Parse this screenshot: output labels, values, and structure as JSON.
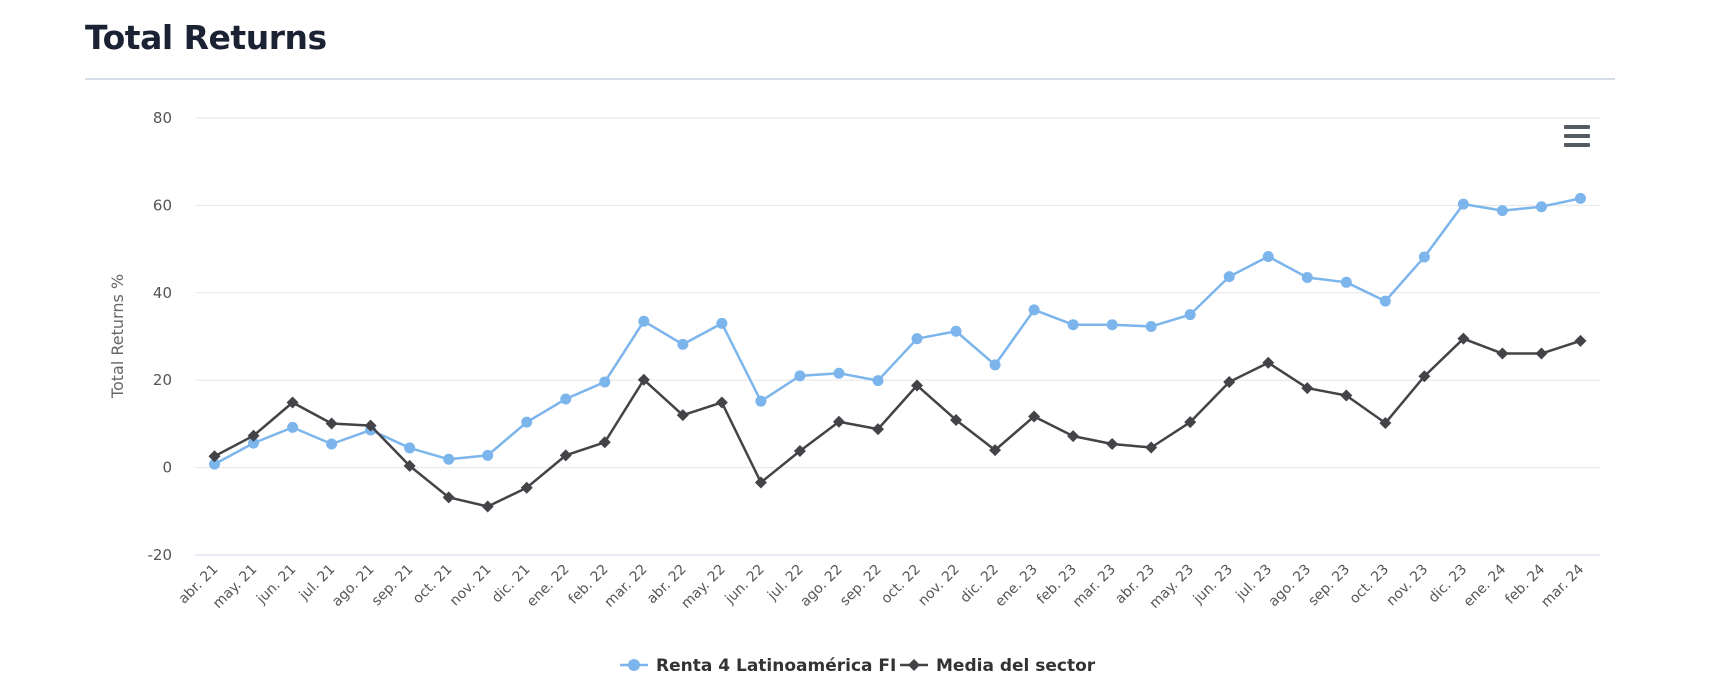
{
  "header": {
    "title": "Total Returns"
  },
  "menu": {
    "icon": "hamburger-menu-icon"
  },
  "chart_data": {
    "type": "line",
    "ylabel": "Total Returns %",
    "xlabel": "",
    "ylim": [
      -20,
      80
    ],
    "yticks": [
      -20,
      0,
      20,
      40,
      60,
      80
    ],
    "ytick_labels": [
      "-20",
      "0",
      "20",
      "40",
      "60",
      "80"
    ],
    "grid": true,
    "legend_position": "bottom-center",
    "categories": [
      "abr. 21",
      "may. 21",
      "jun. 21",
      "jul. 21",
      "ago. 21",
      "sep. 21",
      "oct. 21",
      "nov. 21",
      "dic. 21",
      "ene. 22",
      "feb. 22",
      "mar. 22",
      "abr. 22",
      "may. 22",
      "jun. 22",
      "jul. 22",
      "ago. 22",
      "sep. 22",
      "oct. 22",
      "nov. 22",
      "dic. 22",
      "ene. 23",
      "feb. 23",
      "mar. 23",
      "abr. 23",
      "may. 23",
      "jun. 23",
      "jul. 23",
      "ago. 23",
      "sep. 23",
      "oct. 23",
      "nov. 23",
      "dic. 23",
      "ene. 24",
      "feb. 24",
      "mar. 24"
    ],
    "series": [
      {
        "name": "Renta 4 Latinoamérica FI",
        "color": "#7cb5ec",
        "marker": "circle",
        "values": [
          0.8,
          5.6,
          9.2,
          5.4,
          8.6,
          4.5,
          1.9,
          2.8,
          10.4,
          15.7,
          19.6,
          33.5,
          28.2,
          33.0,
          15.2,
          21.0,
          21.6,
          19.9,
          29.5,
          31.2,
          23.5,
          36.1,
          32.7,
          32.7,
          32.3,
          35.0,
          43.7,
          48.3,
          43.5,
          42.4,
          38.1,
          48.2,
          60.3,
          58.8,
          59.7,
          61.6
        ]
      },
      {
        "name": "Media del sector",
        "color": "#434348",
        "marker": "diamond",
        "values": [
          2.6,
          7.3,
          14.9,
          10.1,
          9.6,
          0.4,
          -6.8,
          -8.9,
          -4.6,
          2.8,
          5.8,
          20.1,
          12.0,
          14.9,
          -3.4,
          3.8,
          10.5,
          8.8,
          18.8,
          10.9,
          4.0,
          11.7,
          7.2,
          5.4,
          4.6,
          10.4,
          19.6,
          24.0,
          18.2,
          16.5,
          10.2,
          20.9,
          29.5,
          26.1,
          26.1,
          29.0
        ]
      }
    ]
  }
}
